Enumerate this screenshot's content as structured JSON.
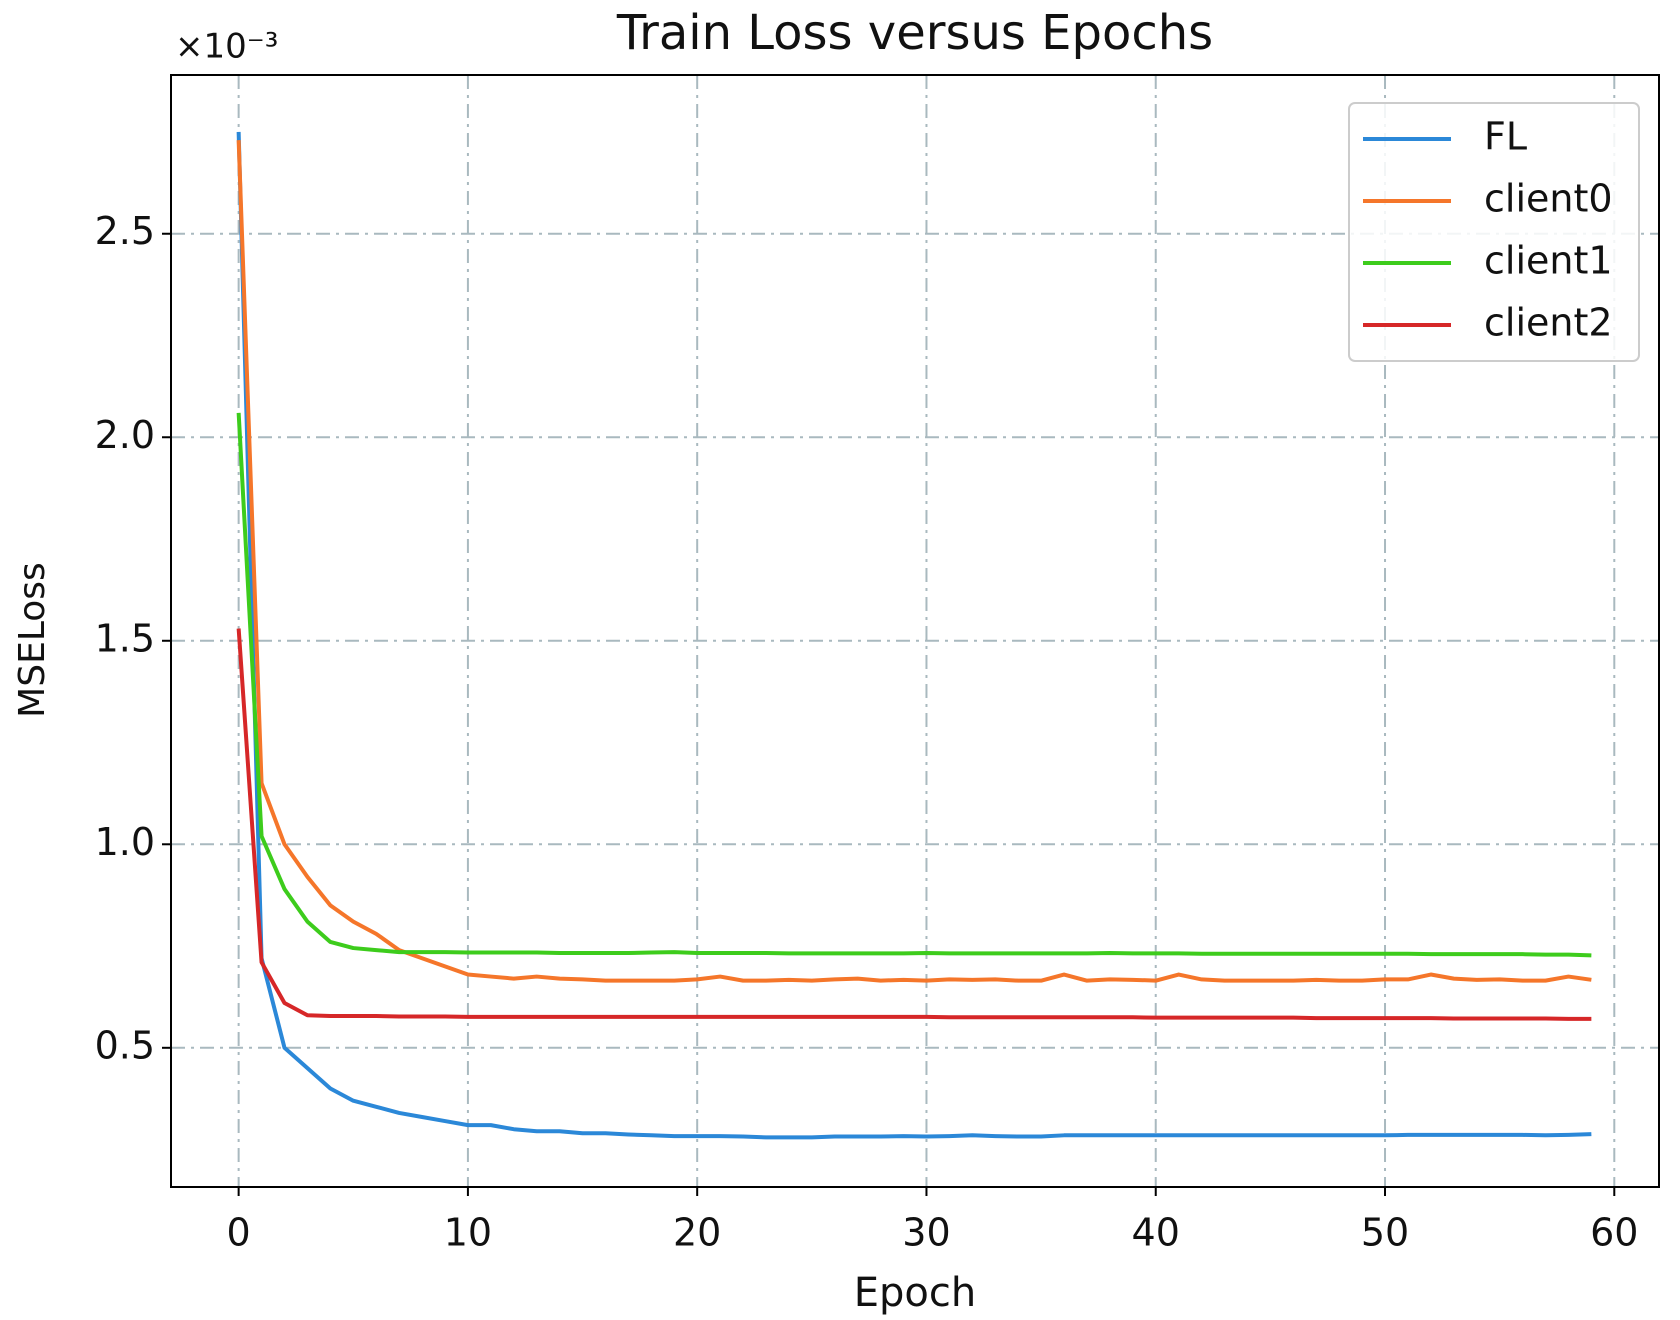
{
  "chart_data": {
    "type": "line",
    "title": "Train Loss versus Epochs",
    "x_label": "Epoch",
    "y_label": "MSELoss",
    "y_offset_label": "×10⁻³",
    "x": [
      0,
      1,
      2,
      3,
      4,
      5,
      6,
      7,
      8,
      9,
      10,
      11,
      12,
      13,
      14,
      15,
      16,
      17,
      18,
      19,
      20,
      21,
      22,
      23,
      24,
      25,
      26,
      27,
      28,
      29,
      30,
      31,
      32,
      33,
      34,
      35,
      36,
      37,
      38,
      39,
      40,
      41,
      42,
      43,
      44,
      45,
      46,
      47,
      48,
      49,
      50,
      51,
      52,
      53,
      54,
      55,
      56,
      57,
      58,
      59
    ],
    "series": [
      {
        "name": "FL",
        "color": "#2b88d8",
        "values": [
          2.75,
          0.72,
          0.5,
          0.45,
          0.4,
          0.37,
          0.355,
          0.34,
          0.33,
          0.32,
          0.31,
          0.31,
          0.3,
          0.295,
          0.295,
          0.29,
          0.29,
          0.287,
          0.285,
          0.283,
          0.283,
          0.283,
          0.282,
          0.28,
          0.28,
          0.28,
          0.282,
          0.282,
          0.282,
          0.283,
          0.282,
          0.283,
          0.285,
          0.283,
          0.282,
          0.282,
          0.285,
          0.285,
          0.285,
          0.285,
          0.285,
          0.285,
          0.285,
          0.285,
          0.285,
          0.285,
          0.285,
          0.285,
          0.285,
          0.285,
          0.285,
          0.286,
          0.286,
          0.286,
          0.286,
          0.286,
          0.286,
          0.285,
          0.286,
          0.288
        ]
      },
      {
        "name": "client0",
        "color": "#f5762a",
        "values": [
          2.73,
          1.15,
          1.0,
          0.92,
          0.85,
          0.81,
          0.78,
          0.74,
          0.72,
          0.7,
          0.68,
          0.675,
          0.67,
          0.675,
          0.67,
          0.668,
          0.665,
          0.665,
          0.665,
          0.665,
          0.668,
          0.675,
          0.665,
          0.665,
          0.667,
          0.665,
          0.668,
          0.67,
          0.665,
          0.667,
          0.665,
          0.668,
          0.667,
          0.668,
          0.665,
          0.665,
          0.68,
          0.665,
          0.668,
          0.667,
          0.665,
          0.68,
          0.668,
          0.665,
          0.665,
          0.665,
          0.665,
          0.667,
          0.665,
          0.665,
          0.668,
          0.668,
          0.68,
          0.67,
          0.667,
          0.668,
          0.665,
          0.665,
          0.675,
          0.667
        ]
      },
      {
        "name": "client1",
        "color": "#3dcc1c",
        "values": [
          2.06,
          1.02,
          0.89,
          0.81,
          0.76,
          0.745,
          0.74,
          0.735,
          0.735,
          0.735,
          0.734,
          0.734,
          0.734,
          0.734,
          0.733,
          0.733,
          0.733,
          0.733,
          0.734,
          0.735,
          0.733,
          0.733,
          0.733,
          0.733,
          0.732,
          0.732,
          0.732,
          0.732,
          0.732,
          0.732,
          0.733,
          0.732,
          0.732,
          0.732,
          0.732,
          0.732,
          0.732,
          0.732,
          0.733,
          0.732,
          0.732,
          0.732,
          0.731,
          0.731,
          0.731,
          0.731,
          0.731,
          0.731,
          0.731,
          0.731,
          0.731,
          0.731,
          0.73,
          0.73,
          0.73,
          0.73,
          0.73,
          0.729,
          0.729,
          0.727
        ]
      },
      {
        "name": "client2",
        "color": "#d62728",
        "values": [
          1.53,
          0.71,
          0.61,
          0.58,
          0.578,
          0.578,
          0.578,
          0.577,
          0.577,
          0.577,
          0.576,
          0.576,
          0.576,
          0.576,
          0.576,
          0.576,
          0.576,
          0.576,
          0.576,
          0.576,
          0.576,
          0.576,
          0.576,
          0.576,
          0.576,
          0.576,
          0.576,
          0.576,
          0.576,
          0.576,
          0.576,
          0.575,
          0.575,
          0.575,
          0.575,
          0.575,
          0.575,
          0.575,
          0.575,
          0.575,
          0.574,
          0.574,
          0.574,
          0.574,
          0.574,
          0.574,
          0.574,
          0.573,
          0.573,
          0.573,
          0.573,
          0.573,
          0.573,
          0.572,
          0.572,
          0.572,
          0.572,
          0.572,
          0.571,
          0.571
        ]
      }
    ],
    "xlim": [
      -2.95,
      61.95
    ],
    "ylim": [
      0.158,
      2.89
    ],
    "xticks": [
      0,
      10,
      20,
      30,
      40,
      50,
      60
    ],
    "yticks": [
      0.5,
      {
        "value": 1.0,
        "label": "1.0"
      },
      1.5,
      {
        "value": 2.0,
        "label": "2.0"
      },
      2.5
    ],
    "grid": true,
    "legend_loc": "upper right"
  }
}
